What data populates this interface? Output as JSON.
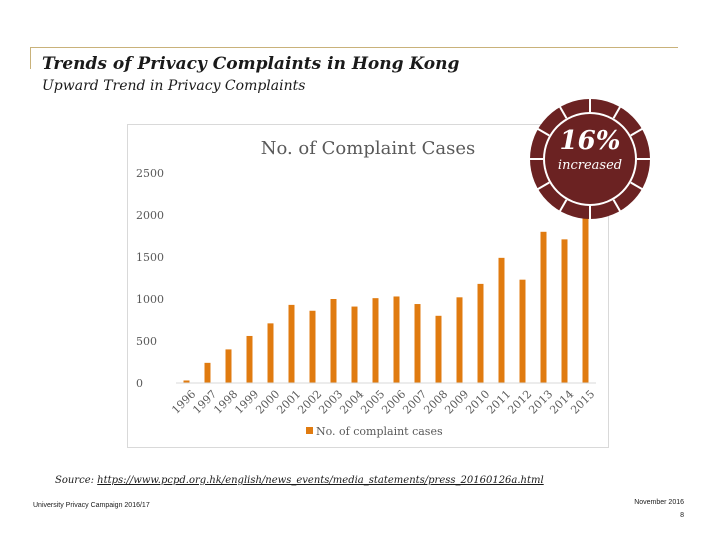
{
  "slide": {
    "title": "Trends of Privacy Complaints in Hong Kong",
    "subtitle": "Upward Trend in Privacy Complaints"
  },
  "badge": {
    "percent": "16%",
    "label": "increased",
    "ring_color": "#6b2222"
  },
  "source": {
    "prefix": "Source:",
    "url": "https://www.pcpd.org.hk/english/news_events/media_statements/press_20160126a.html"
  },
  "footer": {
    "left": "University Privacy Campaign 2016/17",
    "date": "November 2016",
    "page": "8"
  },
  "colors": {
    "bar": "#e07b10",
    "accent_rule": "#c9b27a"
  },
  "chart_data": {
    "type": "bar",
    "title": "No. of Complaint Cases",
    "categories": [
      "1996",
      "1997",
      "1998",
      "1999",
      "2000",
      "2001",
      "2002",
      "2003",
      "2004",
      "2005",
      "2006",
      "2007",
      "2008",
      "2009",
      "2010",
      "2011",
      "2012",
      "2013",
      "2014",
      "2015"
    ],
    "series": [
      {
        "name": "No. of complaint cases",
        "values": [
          30,
          240,
          400,
          560,
          710,
          930,
          860,
          1000,
          910,
          1010,
          1030,
          940,
          800,
          1020,
          1180,
          1490,
          1230,
          1800,
          1710,
          1970
        ]
      }
    ],
    "yticks": [
      0,
      500,
      1000,
      1500,
      2000,
      2500
    ],
    "ylim": [
      0,
      2500
    ],
    "grid": false,
    "legend": "bottom",
    "xlabel": "",
    "ylabel": ""
  }
}
